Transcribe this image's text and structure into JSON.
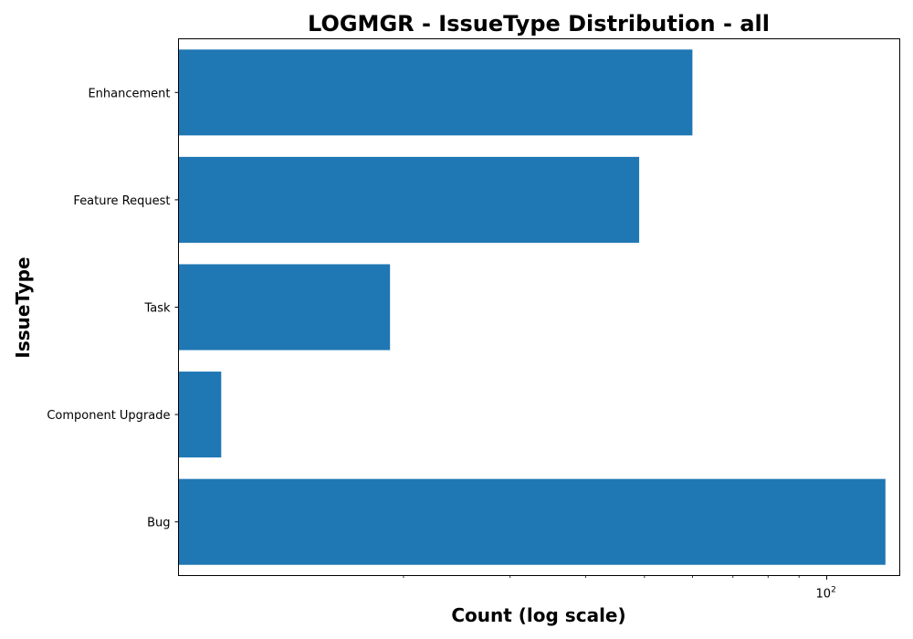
{
  "chart_data": {
    "type": "bar",
    "orientation": "horizontal",
    "title": "LOGMGR - IssueType Distribution - all",
    "xlabel": "Count (log scale)",
    "ylabel": "IssueType",
    "x_scale": "log",
    "xlim": [
      8.5,
      132
    ],
    "x_major_ticks": [
      {
        "value": 100,
        "base": "10",
        "exponent": "2"
      }
    ],
    "x_minor_ticks": [
      20,
      30,
      40,
      50,
      60,
      70,
      80,
      90
    ],
    "categories": [
      "Bug",
      "Component Upgrade",
      "Task",
      "Feature Request",
      "Enhancement"
    ],
    "values": [
      125,
      10,
      19,
      49,
      60
    ],
    "bar_color": "#1f77b4",
    "grid": false,
    "legend": "none"
  }
}
